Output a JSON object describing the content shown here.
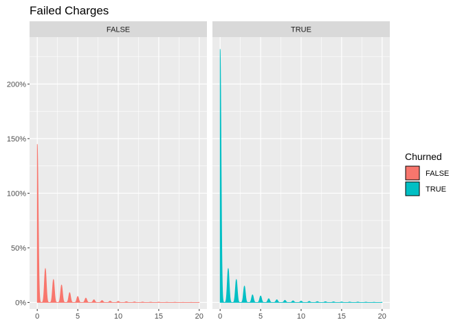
{
  "chart_data": {
    "type": "area",
    "title": "Failed Charges",
    "xlabel": "",
    "ylabel": "",
    "x_ticks": [
      0,
      5,
      10,
      15,
      20
    ],
    "y_ticks": [
      "0%",
      "50%",
      "100%",
      "150%",
      "200%"
    ],
    "y_tick_values": [
      0,
      0.5,
      1.0,
      1.5,
      2.0
    ],
    "xlim": [
      -0.95,
      20.95
    ],
    "ylim": [
      -0.06,
      2.43
    ],
    "grid": true,
    "legend": {
      "title": "Churned",
      "position": "right",
      "entries": [
        {
          "label": "FALSE",
          "color": "#F8766D"
        },
        {
          "label": "TRUE",
          "color": "#00BFC4"
        }
      ]
    },
    "facets": [
      {
        "strip_label": "FALSE",
        "color": "#F8766D",
        "x_range": [
          0,
          20
        ],
        "peaks": [
          {
            "x": 0,
            "y": 1.45
          },
          {
            "x": 1,
            "y": 0.31
          },
          {
            "x": 2,
            "y": 0.21
          },
          {
            "x": 3,
            "y": 0.16
          },
          {
            "x": 4,
            "y": 0.09
          },
          {
            "x": 5,
            "y": 0.055
          },
          {
            "x": 6,
            "y": 0.04
          },
          {
            "x": 7,
            "y": 0.025
          },
          {
            "x": 8,
            "y": 0.018
          },
          {
            "x": 9,
            "y": 0.012
          },
          {
            "x": 10,
            "y": 0.01
          },
          {
            "x": 11,
            "y": 0.007
          },
          {
            "x": 12,
            "y": 0.005
          },
          {
            "x": 13,
            "y": 0.004
          },
          {
            "x": 14,
            "y": 0.003
          },
          {
            "x": 15,
            "y": 0.003
          },
          {
            "x": 16,
            "y": 0.002
          },
          {
            "x": 17,
            "y": 0.002
          },
          {
            "x": 18,
            "y": 0.001
          },
          {
            "x": 19,
            "y": 0.001
          },
          {
            "x": 20,
            "y": 0.001
          }
        ]
      },
      {
        "strip_label": "TRUE",
        "color": "#00BFC4",
        "x_range": [
          0,
          20
        ],
        "peaks": [
          {
            "x": 0,
            "y": 2.32
          },
          {
            "x": 1,
            "y": 0.31
          },
          {
            "x": 2,
            "y": 0.21
          },
          {
            "x": 3,
            "y": 0.15
          },
          {
            "x": 4,
            "y": 0.07
          },
          {
            "x": 5,
            "y": 0.06
          },
          {
            "x": 6,
            "y": 0.035
          },
          {
            "x": 7,
            "y": 0.025
          },
          {
            "x": 8,
            "y": 0.02
          },
          {
            "x": 9,
            "y": 0.015
          },
          {
            "x": 10,
            "y": 0.012
          },
          {
            "x": 11,
            "y": 0.01
          },
          {
            "x": 12,
            "y": 0.008
          },
          {
            "x": 13,
            "y": 0.007
          },
          {
            "x": 14,
            "y": 0.006
          },
          {
            "x": 15,
            "y": 0.005
          },
          {
            "x": 16,
            "y": 0.004
          },
          {
            "x": 17,
            "y": 0.004
          },
          {
            "x": 18,
            "y": 0.003
          },
          {
            "x": 19,
            "y": 0.002
          },
          {
            "x": 20,
            "y": 0.002
          }
        ]
      }
    ]
  }
}
